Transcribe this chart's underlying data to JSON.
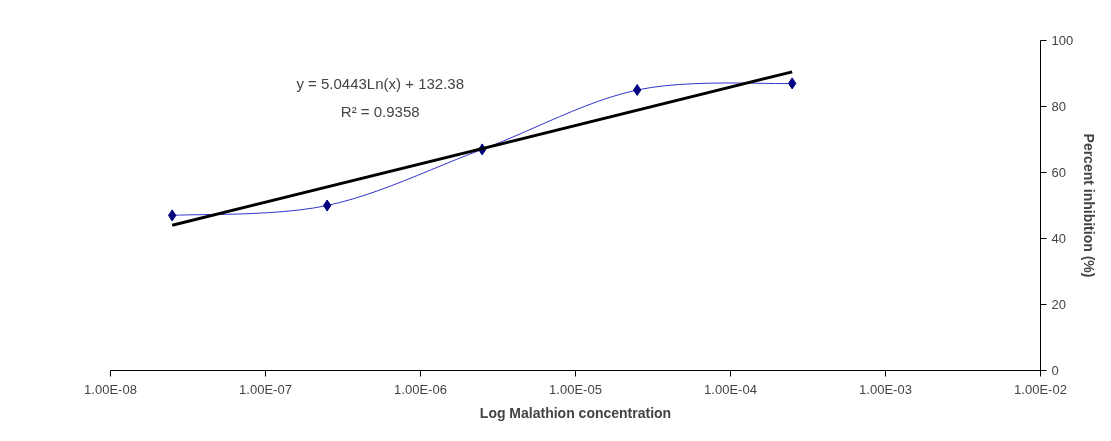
{
  "chart_data": {
    "type": "line",
    "xlabel": "Log Malathion concentration",
    "ylabel": "Percent inhibition (%)",
    "log": "x",
    "xlim": [
      1e-08,
      0.01
    ],
    "xticks": [
      {
        "value": 1e-08,
        "label": "1.00E-08"
      },
      {
        "value": 1e-07,
        "label": "1.00E-07"
      },
      {
        "value": 1e-06,
        "label": "1.00E-06"
      },
      {
        "value": 1e-05,
        "label": "1.00E-05"
      },
      {
        "value": 0.0001,
        "label": "1.00E-04"
      },
      {
        "value": 0.001,
        "label": "1.00E-03"
      },
      {
        "value": 0.01,
        "label": "1.00E-02"
      }
    ],
    "ylim": [
      0,
      100
    ],
    "yticks": [
      0,
      20,
      40,
      60,
      80,
      100
    ],
    "grid": false,
    "series": [
      {
        "color": "#3333cc",
        "marker": "diamond",
        "x": [
          2.5e-08,
          2.5e-07,
          2.5e-06,
          2.5e-05,
          0.00025
        ],
        "values": [
          47,
          50,
          67,
          85,
          87
        ]
      },
      {
        "color": "#000000",
        "marker": "none",
        "x": [
          2.5e-08,
          0.00025
        ],
        "values": [
          44,
          90.5
        ]
      }
    ],
    "annotations": [
      "y = 5.0443Ln(x) + 132.38",
      "R² = 0.9358"
    ]
  }
}
